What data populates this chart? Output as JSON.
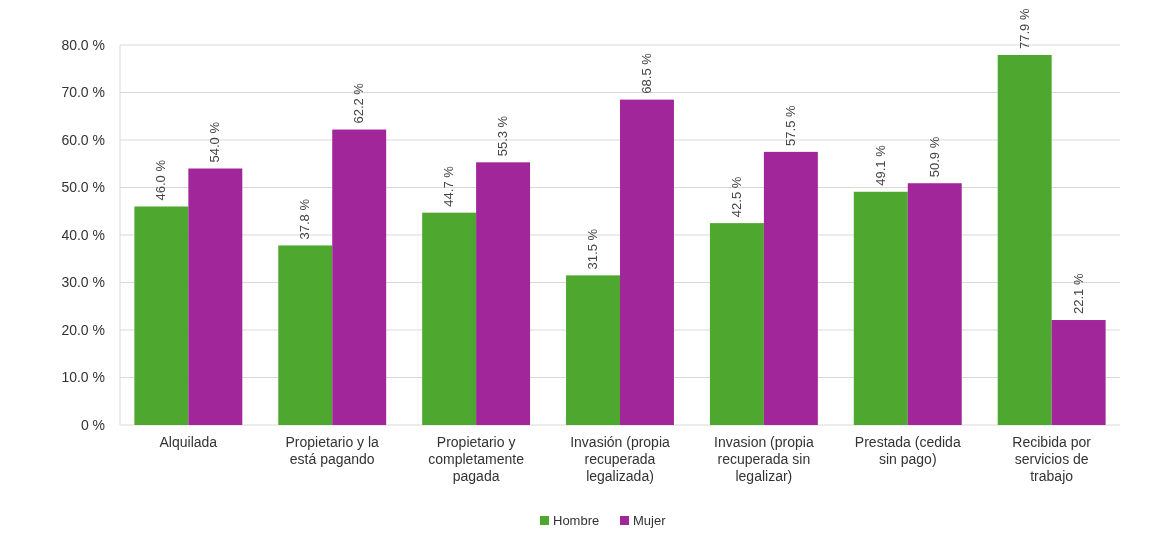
{
  "chart_data": {
    "type": "bar",
    "categories": [
      "Alquilada",
      "Propietario y la está pagando",
      "Propietario y completamente pagada",
      "Invasión (propia recuperada legalizada)",
      "Invasion (propia recuperada sin legalizar)",
      "Prestada (cedida sin pago)",
      "Recibida por servicios de trabajo"
    ],
    "series": [
      {
        "name": "Hombre",
        "color": "#4ea72e",
        "values": [
          46.0,
          37.8,
          44.7,
          31.5,
          42.5,
          49.1,
          77.9
        ],
        "value_labels": [
          "46.0 %",
          "37.8 %",
          "44.7 %",
          "31.5 %",
          "42.5 %",
          "49.1 %",
          "77.9 %"
        ]
      },
      {
        "name": "Mujer",
        "color": "#a0269a",
        "values": [
          54.0,
          62.2,
          55.3,
          68.5,
          57.5,
          50.9,
          22.1
        ],
        "value_labels": [
          "54.0 %",
          "62.2 %",
          "55.3 %",
          "68.5 %",
          "57.5 %",
          "50.9 %",
          "22.1 %"
        ]
      }
    ],
    "ylim": [
      0,
      80
    ],
    "yticks": [
      {
        "value": 0,
        "label": "0 %"
      },
      {
        "value": 10,
        "label": "10.0 %"
      },
      {
        "value": 20,
        "label": "20.0 %"
      },
      {
        "value": 30,
        "label": "30.0 %"
      },
      {
        "value": 40,
        "label": "40.0 %"
      },
      {
        "value": 50,
        "label": "50.0 %"
      },
      {
        "value": 60,
        "label": "60.0 %"
      },
      {
        "value": 70,
        "label": "70.0 %"
      },
      {
        "value": 80,
        "label": "80.0 %"
      }
    ],
    "grid": "y",
    "legend": "bottom"
  }
}
